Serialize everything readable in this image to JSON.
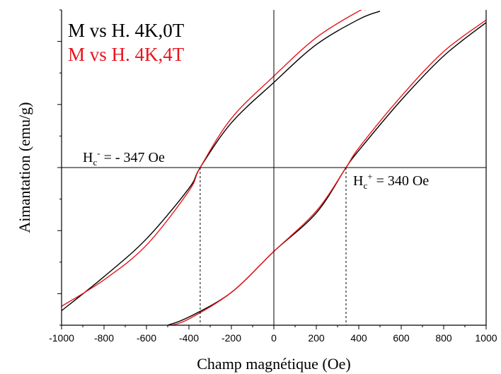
{
  "chart_data": {
    "type": "line",
    "xlabel": "Champ magnétique (Oe)",
    "ylabel": "Aimantation (emu/g)",
    "xlim": [
      -1000,
      1000
    ],
    "ylim": [
      -2.5,
      2.5
    ],
    "x_ticks": [
      -1000,
      -800,
      -600,
      -400,
      -200,
      0,
      200,
      400,
      600,
      800,
      1000
    ],
    "y_tick_labels_shown": false,
    "legend_position": "top-left",
    "series": [
      {
        "name": "M vs H. 4K,0T",
        "color": "#000000",
        "branches": [
          {
            "x": [
              -1000,
              -800,
              -600,
              -400,
              -347,
              -200,
              0,
              200,
              400,
              500
            ],
            "y": [
              -2.27,
              -1.73,
              -1.13,
              -0.33,
              0.0,
              0.71,
              1.35,
              1.95,
              2.35,
              2.48
            ]
          },
          {
            "x": [
              -500,
              -400,
              -200,
              0,
              200,
              340,
              400,
              600,
              800,
              1000
            ],
            "y": [
              -2.5,
              -2.37,
              -1.98,
              -1.33,
              -0.72,
              0.0,
              0.27,
              1.07,
              1.77,
              2.3
            ]
          }
        ]
      },
      {
        "name": "M vs H. 4K,4T",
        "color": "#e8141c",
        "branches": [
          {
            "x": [
              -1000,
              -800,
              -600,
              -400,
              -347,
              -200,
              0,
              200,
              400,
              430
            ],
            "y": [
              -2.2,
              -1.78,
              -1.23,
              -0.37,
              0.0,
              0.78,
              1.45,
              2.06,
              2.48,
              2.5
            ]
          },
          {
            "x": [
              -480,
              -400,
              -200,
              0,
              200,
              340,
              400,
              600,
              800,
              1000
            ],
            "y": [
              -2.5,
              -2.4,
              -1.98,
              -1.33,
              -0.69,
              0.0,
              0.31,
              1.13,
              1.84,
              2.34
            ]
          }
        ]
      }
    ],
    "annotations": [
      {
        "main": "H",
        "sub": "c",
        "sup": "-",
        "rest": " = - 347 Oe",
        "x": -347
      },
      {
        "main": "H",
        "sub": "c",
        "sup": "+",
        "rest": " = 340 Oe",
        "x": 340
      }
    ]
  }
}
